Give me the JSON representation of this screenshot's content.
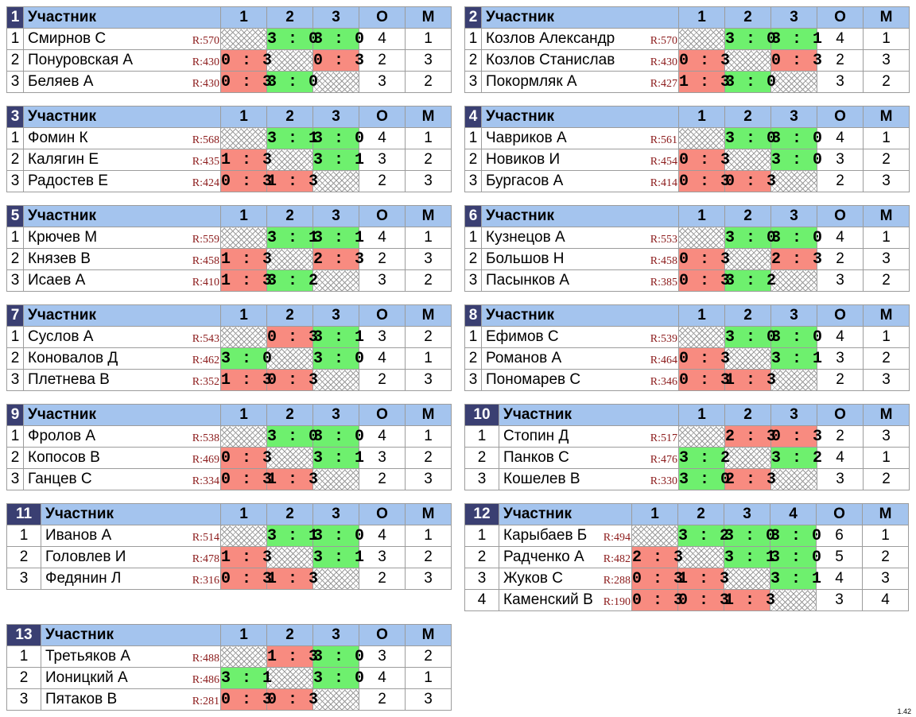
{
  "header": {
    "participant": "Участник",
    "points": "О",
    "place": "М"
  },
  "colors": {
    "header": "#a4c4ee",
    "group_number_bg": "#3a3f72",
    "win": "#6ef06e",
    "loss": "#f88b80",
    "rating": "#8b1a1a"
  },
  "version": "1.42",
  "groups": [
    {
      "number": "1",
      "cols": [
        "1",
        "2",
        "3"
      ],
      "rows": [
        {
          "pos": "1",
          "name": "Смирнов С",
          "rating": "R:570",
          "scores": [
            "",
            "3 : 0",
            "3 : 0"
          ],
          "points": "4",
          "place": "1"
        },
        {
          "pos": "2",
          "name": "Понуровская А",
          "rating": "R:430",
          "scores": [
            "0 : 3",
            "",
            "0 : 3"
          ],
          "points": "2",
          "place": "3"
        },
        {
          "pos": "3",
          "name": "Беляев А",
          "rating": "R:430",
          "scores": [
            "0 : 3",
            "3 : 0",
            ""
          ],
          "points": "3",
          "place": "2"
        }
      ]
    },
    {
      "number": "2",
      "cols": [
        "1",
        "2",
        "3"
      ],
      "rows": [
        {
          "pos": "1",
          "name": "Козлов Александр",
          "rating": "R:570",
          "scores": [
            "",
            "3 : 0",
            "3 : 1"
          ],
          "points": "4",
          "place": "1"
        },
        {
          "pos": "2",
          "name": "Козлов Станислав",
          "rating": "R:430",
          "scores": [
            "0 : 3",
            "",
            "0 : 3"
          ],
          "points": "2",
          "place": "3"
        },
        {
          "pos": "3",
          "name": "Покормляк А",
          "rating": "R:427",
          "scores": [
            "1 : 3",
            "3 : 0",
            ""
          ],
          "points": "3",
          "place": "2"
        }
      ]
    },
    {
      "number": "3",
      "cols": [
        "1",
        "2",
        "3"
      ],
      "rows": [
        {
          "pos": "1",
          "name": "Фомин К",
          "rating": "R:568",
          "scores": [
            "",
            "3 : 1",
            "3 : 0"
          ],
          "points": "4",
          "place": "1"
        },
        {
          "pos": "2",
          "name": "Калягин Е",
          "rating": "R:435",
          "scores": [
            "1 : 3",
            "",
            "3 : 1"
          ],
          "points": "3",
          "place": "2"
        },
        {
          "pos": "3",
          "name": "Радостев Е",
          "rating": "R:424",
          "scores": [
            "0 : 3",
            "1 : 3",
            ""
          ],
          "points": "2",
          "place": "3"
        }
      ]
    },
    {
      "number": "4",
      "cols": [
        "1",
        "2",
        "3"
      ],
      "rows": [
        {
          "pos": "1",
          "name": "Чавриков А",
          "rating": "R:561",
          "scores": [
            "",
            "3 : 0",
            "3 : 0"
          ],
          "points": "4",
          "place": "1"
        },
        {
          "pos": "2",
          "name": "Новиков И",
          "rating": "R:454",
          "scores": [
            "0 : 3",
            "",
            "3 : 0"
          ],
          "points": "3",
          "place": "2"
        },
        {
          "pos": "3",
          "name": "Бургасов А",
          "rating": "R:414",
          "scores": [
            "0 : 3",
            "0 : 3",
            ""
          ],
          "points": "2",
          "place": "3"
        }
      ]
    },
    {
      "number": "5",
      "cols": [
        "1",
        "2",
        "3"
      ],
      "rows": [
        {
          "pos": "1",
          "name": "Крючев М",
          "rating": "R:559",
          "scores": [
            "",
            "3 : 1",
            "3 : 1"
          ],
          "points": "4",
          "place": "1"
        },
        {
          "pos": "2",
          "name": "Князев В",
          "rating": "R:458",
          "scores": [
            "1 : 3",
            "",
            "2 : 3"
          ],
          "points": "2",
          "place": "3"
        },
        {
          "pos": "3",
          "name": "Исаев А",
          "rating": "R:410",
          "scores": [
            "1 : 3",
            "3 : 2",
            ""
          ],
          "points": "3",
          "place": "2"
        }
      ]
    },
    {
      "number": "6",
      "cols": [
        "1",
        "2",
        "3"
      ],
      "rows": [
        {
          "pos": "1",
          "name": "Кузнецов А",
          "rating": "R:553",
          "scores": [
            "",
            "3 : 0",
            "3 : 0"
          ],
          "points": "4",
          "place": "1"
        },
        {
          "pos": "2",
          "name": "Большов Н",
          "rating": "R:458",
          "scores": [
            "0 : 3",
            "",
            "2 : 3"
          ],
          "points": "2",
          "place": "3"
        },
        {
          "pos": "3",
          "name": "Пасынков А",
          "rating": "R:385",
          "scores": [
            "0 : 3",
            "3 : 2",
            ""
          ],
          "points": "3",
          "place": "2"
        }
      ]
    },
    {
      "number": "7",
      "cols": [
        "1",
        "2",
        "3"
      ],
      "rows": [
        {
          "pos": "1",
          "name": "Суслов А",
          "rating": "R:543",
          "scores": [
            "",
            "0 : 3",
            "3 : 1"
          ],
          "points": "3",
          "place": "2"
        },
        {
          "pos": "2",
          "name": "Коновалов Д",
          "rating": "R:462",
          "scores": [
            "3 : 0",
            "",
            "3 : 0"
          ],
          "points": "4",
          "place": "1"
        },
        {
          "pos": "3",
          "name": "Плетнева В",
          "rating": "R:352",
          "scores": [
            "1 : 3",
            "0 : 3",
            ""
          ],
          "points": "2",
          "place": "3"
        }
      ]
    },
    {
      "number": "8",
      "cols": [
        "1",
        "2",
        "3"
      ],
      "rows": [
        {
          "pos": "1",
          "name": "Ефимов С",
          "rating": "R:539",
          "scores": [
            "",
            "3 : 0",
            "3 : 0"
          ],
          "points": "4",
          "place": "1"
        },
        {
          "pos": "2",
          "name": "Романов А",
          "rating": "R:464",
          "scores": [
            "0 : 3",
            "",
            "3 : 1"
          ],
          "points": "3",
          "place": "2"
        },
        {
          "pos": "3",
          "name": "Пономарев С",
          "rating": "R:346",
          "scores": [
            "0 : 3",
            "1 : 3",
            ""
          ],
          "points": "2",
          "place": "3"
        }
      ]
    },
    {
      "number": "9",
      "cols": [
        "1",
        "2",
        "3"
      ],
      "rows": [
        {
          "pos": "1",
          "name": "Фролов А",
          "rating": "R:538",
          "scores": [
            "",
            "3 : 0",
            "3 : 0"
          ],
          "points": "4",
          "place": "1"
        },
        {
          "pos": "2",
          "name": "Копосов В",
          "rating": "R:469",
          "scores": [
            "0 : 3",
            "",
            "3 : 1"
          ],
          "points": "3",
          "place": "2"
        },
        {
          "pos": "3",
          "name": "Ганцев С",
          "rating": "R:334",
          "scores": [
            "0 : 3",
            "1 : 3",
            ""
          ],
          "points": "2",
          "place": "3"
        }
      ]
    },
    {
      "number": "10",
      "cols": [
        "1",
        "2",
        "3"
      ],
      "rows": [
        {
          "pos": "1",
          "name": "Стопин Д",
          "rating": "R:517",
          "scores": [
            "",
            "2 : 3",
            "0 : 3"
          ],
          "points": "2",
          "place": "3"
        },
        {
          "pos": "2",
          "name": "Панков С",
          "rating": "R:476",
          "scores": [
            "3 : 2",
            "",
            "3 : 2"
          ],
          "points": "4",
          "place": "1"
        },
        {
          "pos": "3",
          "name": "Кошелев В",
          "rating": "R:330",
          "scores": [
            "3 : 0",
            "2 : 3",
            ""
          ],
          "points": "3",
          "place": "2"
        }
      ]
    },
    {
      "number": "11",
      "cols": [
        "1",
        "2",
        "3"
      ],
      "rows": [
        {
          "pos": "1",
          "name": "Иванов А",
          "rating": "R:514",
          "scores": [
            "",
            "3 : 1",
            "3 : 0"
          ],
          "points": "4",
          "place": "1"
        },
        {
          "pos": "2",
          "name": "Головлев И",
          "rating": "R:478",
          "scores": [
            "1 : 3",
            "",
            "3 : 1"
          ],
          "points": "3",
          "place": "2"
        },
        {
          "pos": "3",
          "name": "Федянин Л",
          "rating": "R:316",
          "scores": [
            "0 : 3",
            "1 : 3",
            ""
          ],
          "points": "2",
          "place": "3"
        }
      ]
    },
    {
      "number": "12",
      "cols": [
        "1",
        "2",
        "3",
        "4"
      ],
      "rows": [
        {
          "pos": "1",
          "name": "Карыбаев Б",
          "rating": "R:494",
          "scores": [
            "",
            "3 : 2",
            "3 : 0",
            "3 : 0"
          ],
          "points": "6",
          "place": "1"
        },
        {
          "pos": "2",
          "name": "Радченко А",
          "rating": "R:482",
          "scores": [
            "2 : 3",
            "",
            "3 : 1",
            "3 : 0"
          ],
          "points": "5",
          "place": "2"
        },
        {
          "pos": "3",
          "name": "Жуков С",
          "rating": "R:288",
          "scores": [
            "0 : 3",
            "1 : 3",
            "",
            "3 : 1"
          ],
          "points": "4",
          "place": "3"
        },
        {
          "pos": "4",
          "name": "Каменский В",
          "rating": "R:190",
          "scores": [
            "0 : 3",
            "0 : 3",
            "1 : 3",
            ""
          ],
          "points": "3",
          "place": "4"
        }
      ]
    },
    {
      "number": "13",
      "cols": [
        "1",
        "2",
        "3"
      ],
      "rows": [
        {
          "pos": "1",
          "name": "Третьяков А",
          "rating": "R:488",
          "scores": [
            "",
            "1 : 3",
            "3 : 0"
          ],
          "points": "3",
          "place": "2"
        },
        {
          "pos": "2",
          "name": "Ионицкий А",
          "rating": "R:486",
          "scores": [
            "3 : 1",
            "",
            "3 : 0"
          ],
          "points": "4",
          "place": "1"
        },
        {
          "pos": "3",
          "name": "Пятаков В",
          "rating": "R:281",
          "scores": [
            "0 : 3",
            "0 : 3",
            ""
          ],
          "points": "2",
          "place": "3"
        }
      ]
    }
  ]
}
